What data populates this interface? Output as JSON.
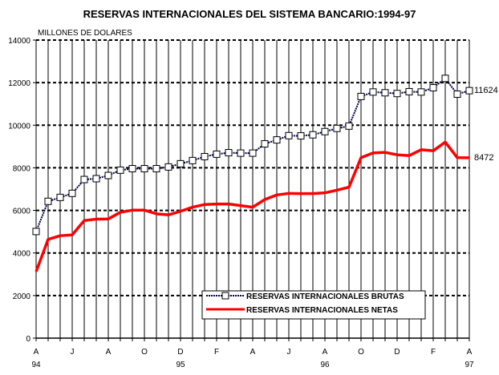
{
  "chart_data": {
    "type": "line",
    "title": "RESERVAS INTERNACIONALES DEL SISTEMA BANCARIO:1994-97",
    "ylabel": "MILLONES DE DOLARES",
    "xlabel": "",
    "ylim": [
      0,
      14000
    ],
    "yticks": [
      0,
      2000,
      4000,
      6000,
      8000,
      10000,
      12000,
      14000
    ],
    "grid": true,
    "x_tick_labels": [
      "A",
      "J",
      "A",
      "O",
      "D",
      "F",
      "A",
      "J",
      "A",
      "O",
      "D",
      "F",
      "A",
      "J",
      "A",
      "O",
      "D",
      "F",
      "A"
    ],
    "year_labels": [
      {
        "label": "94",
        "month_index": 0
      },
      {
        "label": "95",
        "month_index": 12
      },
      {
        "label": "96",
        "month_index": 24
      },
      {
        "label": "97",
        "month_index": 36
      }
    ],
    "legend_position": "bottom-center",
    "series": [
      {
        "name": "RESERVAS INTERNACIONALES BRUTAS",
        "color": "#000050",
        "marker": "square",
        "end_label": "11624",
        "values": [
          5010,
          6425,
          6610,
          6800,
          7450,
          7490,
          7640,
          7890,
          7960,
          7960,
          7960,
          8040,
          8190,
          8340,
          8525,
          8640,
          8710,
          8690,
          8690,
          9125,
          9310,
          9510,
          9500,
          9550,
          9700,
          9850,
          9960,
          11350,
          11560,
          11525,
          11490,
          11575,
          11560,
          11760,
          12200,
          11460,
          11624
        ]
      },
      {
        "name": "RESERVAS INTERNACIONALES NETAS",
        "color": "#ff0000",
        "marker": "none",
        "end_label": "8472",
        "values": [
          3125,
          4640,
          4810,
          4850,
          5525,
          5590,
          5600,
          5910,
          6010,
          6010,
          5840,
          5790,
          5960,
          6150,
          6275,
          6300,
          6300,
          6225,
          6150,
          6510,
          6725,
          6800,
          6790,
          6790,
          6825,
          6950,
          7090,
          8475,
          8700,
          8725,
          8610,
          8575,
          8850,
          8800,
          9210,
          8475,
          8472
        ]
      }
    ]
  }
}
